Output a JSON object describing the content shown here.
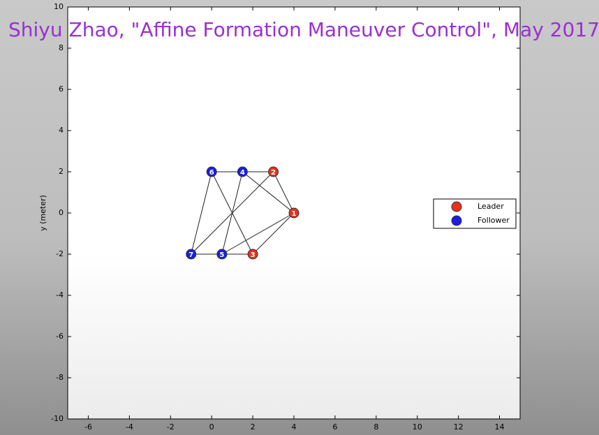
{
  "chart_data": {
    "type": "graph",
    "title": "Shiyu Zhao, \"Affine Formation Maneuver Control\", May 2017",
    "y_label": "y (meter)",
    "xlim": [
      -7,
      15
    ],
    "xticks": [
      -6,
      -4,
      -2,
      0,
      2,
      4,
      6,
      8,
      10,
      12,
      14
    ],
    "ylim": [
      -10,
      10
    ],
    "yticks": [
      -10,
      -8,
      -6,
      -4,
      -2,
      0,
      2,
      4,
      6,
      8,
      10
    ],
    "grid": false,
    "legend": "right",
    "series": [
      {
        "name": "Leader",
        "color": "#e8301c",
        "labels": [
          "1",
          "2",
          "3"
        ],
        "x": [
          4,
          3,
          2
        ],
        "y": [
          0,
          2,
          -2
        ]
      },
      {
        "name": "Follower",
        "color": "#1a1ee0",
        "labels": [
          "4",
          "5",
          "6",
          "7"
        ],
        "x": [
          1.5,
          0.5,
          0,
          -1
        ],
        "y": [
          2,
          -2,
          2,
          -2
        ]
      }
    ],
    "edges": [
      [
        "1",
        "2"
      ],
      [
        "1",
        "3"
      ],
      [
        "1",
        "4"
      ],
      [
        "1",
        "5"
      ],
      [
        "2",
        "4"
      ],
      [
        "2",
        "7"
      ],
      [
        "3",
        "5"
      ],
      [
        "3",
        "6"
      ],
      [
        "4",
        "6"
      ],
      [
        "4",
        "5"
      ],
      [
        "5",
        "7"
      ],
      [
        "6",
        "7"
      ]
    ]
  }
}
